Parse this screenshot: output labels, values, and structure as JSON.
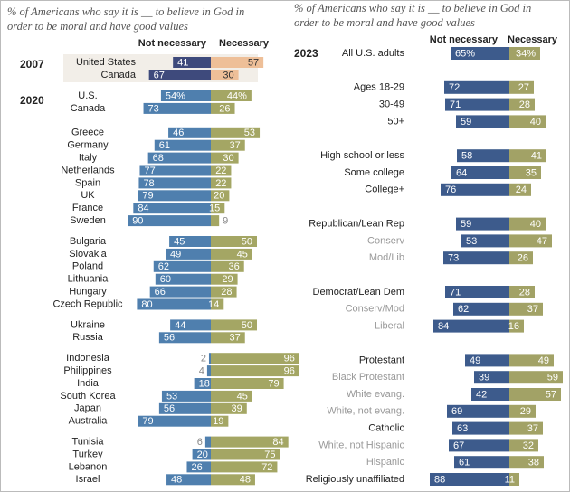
{
  "chart_data": [
    {
      "type": "diverging_bar",
      "label": "2007",
      "title": "% of Americans who say it is __ to believe in God in order to be moral and have good values",
      "categories": [
        "United States",
        "Canada"
      ],
      "series": [
        {
          "name": "Not necessary",
          "color": "#3e4a7c",
          "values": [
            41,
            67
          ]
        },
        {
          "name": "Necessary",
          "color": "#eebf98",
          "values": [
            57,
            30
          ]
        }
      ]
    },
    {
      "type": "diverging_bar",
      "label": "2020",
      "categories": [
        "U.S.",
        "Canada",
        "Greece",
        "Germany",
        "Italy",
        "Netherlands",
        "Spain",
        "UK",
        "France",
        "Sweden",
        "Bulgaria",
        "Slovakia",
        "Poland",
        "Lithuania",
        "Hungary",
        "Czech Republic",
        "Ukraine",
        "Russia",
        "Indonesia",
        "Philippines",
        "India",
        "South Korea",
        "Japan",
        "Australia",
        "Tunisia",
        "Turkey",
        "Lebanon",
        "Israel"
      ],
      "series": [
        {
          "color": "#4f7fae",
          "values": [
            54,
            73,
            46,
            61,
            68,
            77,
            78,
            79,
            84,
            90,
            45,
            49,
            62,
            60,
            66,
            80,
            44,
            56,
            2,
            4,
            18,
            53,
            56,
            79,
            6,
            20,
            26,
            48
          ],
          "value_labels": [
            "54%",
            "73",
            "46",
            "61",
            "68",
            "77",
            "78",
            "79",
            "84",
            "90",
            "45",
            "49",
            "62",
            "60",
            "66",
            "80",
            "44",
            "56",
            "2",
            "4",
            "18",
            "53",
            "56",
            "79",
            "6",
            "20",
            "26",
            "48"
          ]
        },
        {
          "color": "#a4a664",
          "values": [
            44,
            26,
            53,
            37,
            30,
            22,
            22,
            20,
            15,
            9,
            50,
            45,
            36,
            29,
            28,
            14,
            50,
            37,
            96,
            96,
            79,
            45,
            39,
            19,
            84,
            75,
            72,
            48
          ],
          "value_labels": [
            "44%",
            "26",
            "53",
            "37",
            "30",
            "22",
            "22",
            "20",
            "15",
            "9",
            "50",
            "45",
            "36",
            "29",
            "28",
            "14",
            "50",
            "37",
            "96",
            "96",
            "79",
            "45",
            "39",
            "19",
            "84",
            "75",
            "72",
            "48"
          ]
        }
      ]
    },
    {
      "type": "diverging_bar",
      "label": "2023",
      "title": "% of Americans who say it is __ to believe in God in order to be moral and have good values",
      "categories": [
        "All U.S. adults",
        "Ages 18-29",
        "30-49",
        "50+",
        "High school or less",
        "Some college",
        "College+",
        "Republican/Lean Rep",
        "Conserv",
        "Mod/Lib",
        "Democrat/Lean Dem",
        "Conserv/Mod",
        "Liberal",
        "Protestant",
        "Black Protestant",
        "White evang.",
        "White, not evang.",
        "Catholic",
        "White, not Hispanic",
        "Hispanic",
        "Religiously unaffiliated"
      ],
      "series": [
        {
          "name": "Not necessary",
          "color": "#3d5b8c",
          "values": [
            65,
            72,
            71,
            59,
            58,
            64,
            76,
            59,
            53,
            73,
            71,
            62,
            84,
            49,
            39,
            42,
            69,
            63,
            67,
            61,
            88
          ],
          "value_labels": [
            "65%",
            "72",
            "71",
            "59",
            "58",
            "64",
            "76",
            "59",
            "53",
            "73",
            "71",
            "62",
            "84",
            "49",
            "39",
            "42",
            "69",
            "63",
            "67",
            "61",
            "88"
          ]
        },
        {
          "name": "Necessary",
          "color": "#a2a266",
          "values": [
            34,
            27,
            28,
            40,
            41,
            35,
            24,
            40,
            47,
            26,
            28,
            37,
            16,
            49,
            59,
            57,
            29,
            37,
            32,
            38,
            11
          ],
          "value_labels": [
            "34%",
            "27",
            "28",
            "40",
            "41",
            "35",
            "24",
            "40",
            "47",
            "26",
            "28",
            "37",
            "16",
            "49",
            "59",
            "57",
            "29",
            "37",
            "32",
            "38",
            "11"
          ]
        }
      ]
    }
  ]
}
